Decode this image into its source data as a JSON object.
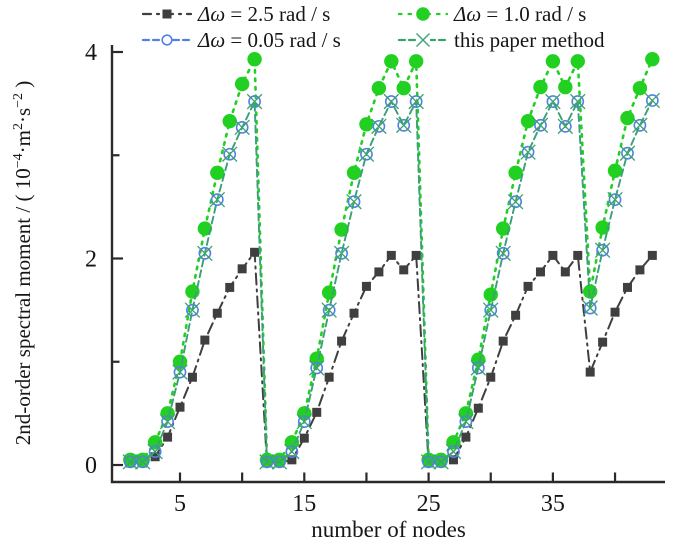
{
  "figure": {
    "background": "#ffffff"
  },
  "legend": {
    "position": "top",
    "entries": [
      {
        "id": "dw25",
        "symbol": "Δω",
        "text": " = 2.5 rad / s",
        "marker": "square",
        "color": "#3f3f3f",
        "line": "dashdot"
      },
      {
        "id": "dw10",
        "symbol": "Δω",
        "text": " = 1.0 rad / s",
        "marker": "filled-circle",
        "color": "#22d022",
        "line": "dotted"
      },
      {
        "id": "dw005",
        "symbol": "Δω",
        "text": " = 0.05 rad / s",
        "marker": "open-circle",
        "color": "#5580e4",
        "line": "dashed"
      },
      {
        "id": "paper",
        "symbol": "",
        "text": "this paper method",
        "marker": "x",
        "color": "#3aa273",
        "line": "dashed"
      }
    ]
  },
  "chart_data": {
    "type": "line",
    "title": "",
    "xlabel": "number of nodes",
    "ylabel": "2nd-order spectral moment / ( 10−4·m2·s−2 )",
    "ylabel_segments": [
      {
        "t": "2nd-order spectral moment / ( 10"
      },
      {
        "sup": "−4"
      },
      {
        "t": "·m"
      },
      {
        "sup": "2"
      },
      {
        "t": "·s"
      },
      {
        "sup": "−2"
      },
      {
        "t": " )"
      }
    ],
    "xlim": [
      -0.5,
      44
    ],
    "ylim": [
      -0.17,
      4.07
    ],
    "grid": false,
    "legend_position": "top",
    "x_major_ticks": [
      5,
      15,
      25,
      35
    ],
    "x_minor_ticks": [
      10,
      20,
      30,
      40
    ],
    "x_tick_labels": [
      "5",
      "15",
      "25",
      "35"
    ],
    "y_major_ticks": [
      0,
      2,
      4
    ],
    "y_minor_ticks": [
      1,
      3
    ],
    "y_tick_labels": [
      "0",
      "2",
      "4"
    ],
    "x": [
      1,
      2,
      3,
      4,
      5,
      6,
      7,
      8,
      9,
      10,
      11,
      12,
      13,
      14,
      15,
      16,
      17,
      18,
      19,
      20,
      21,
      22,
      23,
      24,
      25,
      26,
      27,
      28,
      29,
      30,
      31,
      32,
      33,
      34,
      35,
      36,
      37,
      38,
      39,
      40,
      41,
      42,
      43
    ],
    "series": [
      {
        "name": "Δω = 2.5 rad / s",
        "marker": "square",
        "color": "#3f3f3f",
        "linestyle": "dashdot",
        "lw": 2.0,
        "values": [
          0.02,
          0.02,
          0.08,
          0.27,
          0.56,
          0.85,
          1.21,
          1.47,
          1.72,
          1.9,
          2.06,
          0.02,
          0.02,
          0.05,
          0.26,
          0.51,
          0.85,
          1.2,
          1.47,
          1.73,
          1.87,
          2.03,
          1.89,
          2.03,
          0.02,
          0.02,
          0.05,
          0.27,
          0.55,
          0.85,
          1.2,
          1.45,
          1.73,
          1.87,
          2.03,
          1.87,
          2.03,
          0.9,
          1.19,
          1.48,
          1.72,
          1.89,
          2.03
        ]
      },
      {
        "name": "Δω = 1.0 rad / s",
        "marker": "filled-circle",
        "color": "#22d022",
        "linestyle": "dotted",
        "lw": 2.6,
        "values": [
          0.05,
          0.05,
          0.22,
          0.5,
          1.0,
          1.68,
          2.29,
          2.83,
          3.33,
          3.69,
          3.93,
          0.05,
          0.05,
          0.22,
          0.5,
          1.03,
          1.67,
          2.28,
          2.83,
          3.3,
          3.65,
          3.91,
          3.65,
          3.91,
          0.05,
          0.05,
          0.22,
          0.5,
          1.02,
          1.65,
          2.29,
          2.83,
          3.33,
          3.66,
          3.91,
          3.66,
          3.91,
          1.68,
          2.3,
          2.85,
          3.36,
          3.65,
          3.93
        ]
      },
      {
        "name": "Δω = 0.05 rad / s",
        "marker": "open-circle",
        "color": "#5580e4",
        "linestyle": "dashed",
        "lw": 1.7,
        "values": [
          0.03,
          0.03,
          0.13,
          0.42,
          0.9,
          1.5,
          2.05,
          2.57,
          3.01,
          3.27,
          3.52,
          0.03,
          0.03,
          0.13,
          0.42,
          0.94,
          1.5,
          2.05,
          2.55,
          3.01,
          3.28,
          3.52,
          3.29,
          3.52,
          0.03,
          0.03,
          0.13,
          0.42,
          0.94,
          1.5,
          2.05,
          2.55,
          3.03,
          3.29,
          3.52,
          3.28,
          3.52,
          1.52,
          2.08,
          2.57,
          3.02,
          3.29,
          3.53
        ]
      },
      {
        "name": "this paper method",
        "marker": "x",
        "color": "#3aa273",
        "linestyle": "dashed",
        "lw": 1.8,
        "values": [
          0.03,
          0.03,
          0.13,
          0.42,
          0.9,
          1.5,
          2.05,
          2.57,
          3.01,
          3.27,
          3.52,
          0.03,
          0.03,
          0.13,
          0.42,
          0.94,
          1.5,
          2.05,
          2.55,
          3.01,
          3.28,
          3.52,
          3.29,
          3.52,
          0.03,
          0.03,
          0.13,
          0.42,
          0.94,
          1.5,
          2.05,
          2.55,
          3.03,
          3.29,
          3.52,
          3.28,
          3.52,
          1.52,
          2.08,
          2.57,
          3.02,
          3.29,
          3.53
        ]
      }
    ]
  }
}
